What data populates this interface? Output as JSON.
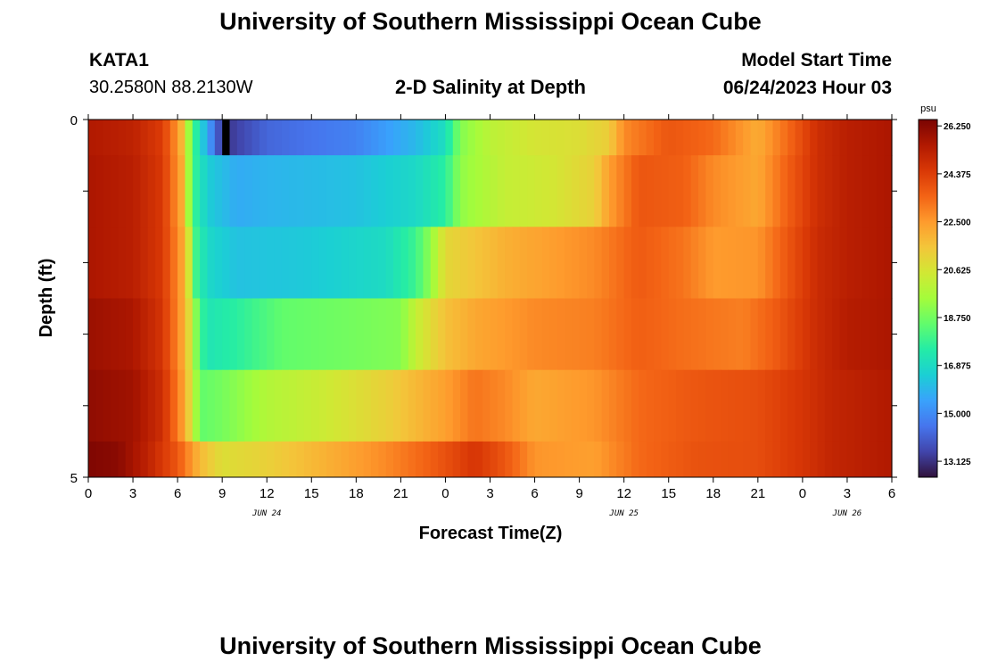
{
  "page": {
    "title": "University of Southern Mississippi Ocean Cube",
    "footer_title": "University of Southern Mississippi Ocean Cube",
    "station": "KATA1",
    "coordinates": "30.2580N  88.2130W",
    "start_label": "Model Start Time",
    "start_value": "06/24/2023 Hour 03"
  },
  "chart_data": {
    "type": "heatmap",
    "title": "2-D Salinity at Depth",
    "xlabel": "Forecast Time(Z)",
    "ylabel": "Depth (ft)",
    "units": "psu",
    "x_tick_labels": [
      "0",
      "3",
      "6",
      "9",
      "12",
      "15",
      "18",
      "21",
      "0",
      "3",
      "6",
      "9",
      "12",
      "15",
      "18",
      "21",
      "0",
      "3",
      "6"
    ],
    "x_range_hours": [
      0,
      54
    ],
    "date_labels": [
      {
        "text": "JUN 24",
        "hour": 12
      },
      {
        "text": "JUN 25",
        "hour": 36
      },
      {
        "text": "JUN 26",
        "hour": 51
      }
    ],
    "y_tick_labels": [
      "0",
      "5"
    ],
    "y_range": [
      0,
      5
    ],
    "color_scale": {
      "min": 12.5,
      "max": 26.5,
      "ticks": [
        "26.250",
        "24.375",
        "22.500",
        "20.625",
        "18.750",
        "16.875",
        "15.000",
        "13.125"
      ],
      "colors": [
        "#30123b",
        "#4145ab",
        "#4675ed",
        "#39a2fc",
        "#1bcfd4",
        "#24eca6",
        "#61fc6c",
        "#a4fc3b",
        "#d1e834",
        "#f3c63a",
        "#fe9b2d",
        "#f36315",
        "#d93806",
        "#b11901",
        "#7a0402"
      ]
    },
    "rows": [
      {
        "depth": "0-0.5",
        "profile": [
          [
            0,
            25.5
          ],
          [
            3,
            25.2
          ],
          [
            5,
            24.4
          ],
          [
            6.2,
            22.2
          ],
          [
            7,
            18.2
          ],
          [
            8,
            15.6
          ],
          [
            9,
            13.2
          ],
          [
            9.6,
            13.3
          ],
          [
            12,
            14.2
          ],
          [
            18,
            14.8
          ],
          [
            22,
            16.0
          ],
          [
            24,
            17.0
          ],
          [
            25,
            19.0
          ],
          [
            27,
            20.0
          ],
          [
            30,
            20.6
          ],
          [
            33,
            20.8
          ],
          [
            35,
            21.3
          ],
          [
            36,
            22.8
          ],
          [
            39,
            23.8
          ],
          [
            42,
            23.4
          ],
          [
            45,
            22.1
          ],
          [
            47,
            23.4
          ],
          [
            49,
            24.8
          ],
          [
            51,
            25.3
          ],
          [
            54,
            25.6
          ]
        ]
      },
      {
        "depth": "0.5-1.5",
        "profile": [
          [
            0,
            25.6
          ],
          [
            3,
            25.3
          ],
          [
            5,
            24.5
          ],
          [
            6.3,
            22.1
          ],
          [
            7,
            18.0
          ],
          [
            8,
            16.5
          ],
          [
            10,
            15.7
          ],
          [
            12,
            15.9
          ],
          [
            18,
            16.2
          ],
          [
            22,
            16.8
          ],
          [
            24,
            17.6
          ],
          [
            25,
            19.2
          ],
          [
            28,
            20.2
          ],
          [
            31,
            20.5
          ],
          [
            34,
            21.2
          ],
          [
            35,
            22.4
          ],
          [
            37,
            23.8
          ],
          [
            40,
            23.6
          ],
          [
            42,
            22.8
          ],
          [
            45,
            22.2
          ],
          [
            47,
            23.6
          ],
          [
            49,
            24.8
          ],
          [
            51,
            25.3
          ],
          [
            54,
            25.6
          ]
        ]
      },
      {
        "depth": "1.5-2.5",
        "profile": [
          [
            0,
            25.6
          ],
          [
            3,
            25.3
          ],
          [
            5,
            24.5
          ],
          [
            6.5,
            22.0
          ],
          [
            7.2,
            18.0
          ],
          [
            8,
            16.8
          ],
          [
            10,
            16.2
          ],
          [
            15,
            16.4
          ],
          [
            20,
            16.9
          ],
          [
            22,
            17.9
          ],
          [
            23,
            19.2
          ],
          [
            24,
            21.0
          ],
          [
            26,
            21.5
          ],
          [
            28,
            22.0
          ],
          [
            31,
            22.4
          ],
          [
            34,
            22.8
          ],
          [
            37,
            23.7
          ],
          [
            40,
            23.2
          ],
          [
            42,
            22.5
          ],
          [
            45,
            22.6
          ],
          [
            47,
            23.8
          ],
          [
            49,
            24.9
          ],
          [
            51,
            25.3
          ],
          [
            54,
            25.6
          ]
        ]
      },
      {
        "depth": "2.5-3.5",
        "profile": [
          [
            0,
            25.9
          ],
          [
            3,
            25.6
          ],
          [
            5,
            24.6
          ],
          [
            6.5,
            22.0
          ],
          [
            7.5,
            18.0
          ],
          [
            8,
            17.2
          ],
          [
            10,
            17.6
          ],
          [
            13,
            18.5
          ],
          [
            18,
            18.8
          ],
          [
            21,
            19.0
          ],
          [
            22,
            20.2
          ],
          [
            24,
            21.6
          ],
          [
            26,
            22.2
          ],
          [
            30,
            22.8
          ],
          [
            34,
            23.0
          ],
          [
            37,
            23.6
          ],
          [
            40,
            23.3
          ],
          [
            44,
            23.0
          ],
          [
            46,
            23.6
          ],
          [
            49,
            24.9
          ],
          [
            51,
            25.4
          ],
          [
            54,
            25.6
          ]
        ]
      },
      {
        "depth": "3.5-4.5",
        "profile": [
          [
            0,
            26.1
          ],
          [
            3,
            25.8
          ],
          [
            5,
            24.8
          ],
          [
            6.5,
            22.2
          ],
          [
            7.5,
            18.5
          ],
          [
            9,
            18.8
          ],
          [
            12,
            19.8
          ],
          [
            16,
            20.4
          ],
          [
            20,
            21.2
          ],
          [
            24,
            22.4
          ],
          [
            26,
            23.2
          ],
          [
            28,
            22.8
          ],
          [
            30,
            22.2
          ],
          [
            34,
            22.6
          ],
          [
            37,
            23.4
          ],
          [
            41,
            23.8
          ],
          [
            45,
            24.0
          ],
          [
            48,
            24.6
          ],
          [
            50,
            25.1
          ],
          [
            52,
            25.3
          ],
          [
            54,
            25.5
          ]
        ]
      },
      {
        "depth": "4.5-5",
        "profile": [
          [
            0,
            26.4
          ],
          [
            2,
            26.2
          ],
          [
            4,
            25.2
          ],
          [
            6,
            23.8
          ],
          [
            7.5,
            21.8
          ],
          [
            9,
            20.8
          ],
          [
            12,
            21.2
          ],
          [
            16,
            22.0
          ],
          [
            20,
            22.8
          ],
          [
            23,
            23.6
          ],
          [
            26,
            24.6
          ],
          [
            28,
            23.8
          ],
          [
            30,
            22.6
          ],
          [
            34,
            22.4
          ],
          [
            37,
            23.4
          ],
          [
            41,
            23.9
          ],
          [
            45,
            24.0
          ],
          [
            48,
            24.6
          ],
          [
            50,
            25.1
          ],
          [
            52,
            25.3
          ],
          [
            54,
            25.5
          ]
        ]
      }
    ],
    "missing_cells": [
      {
        "row": 0,
        "hour": 9
      }
    ]
  }
}
